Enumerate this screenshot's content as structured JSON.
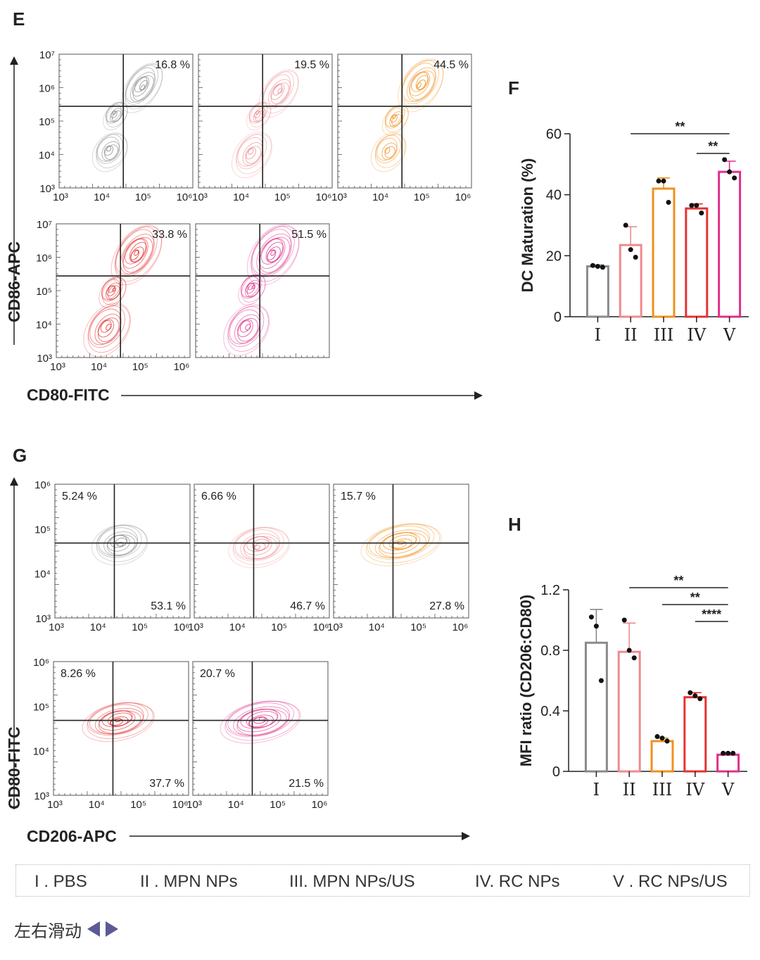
{
  "panels": {
    "E": {
      "letter": "E",
      "ylabel": "CD86-APC",
      "xlabel": "CD80-FITC",
      "y_ticks": [
        "10³",
        "10⁴",
        "10⁵",
        "10⁶",
        "10⁷"
      ],
      "x_ticks": [
        "10³",
        "10⁴",
        "10⁵",
        "10⁶"
      ],
      "plots": [
        {
          "group": "I",
          "color": "#8a8a8a",
          "q_upper_right": "16.8 %"
        },
        {
          "group": "II",
          "color": "#ef8a8e",
          "q_upper_right": "19.5 %"
        },
        {
          "group": "III",
          "color": "#f0901e",
          "q_upper_right": "44.5 %"
        },
        {
          "group": "IV",
          "color": "#e63232",
          "q_upper_right": "33.8 %"
        },
        {
          "group": "V",
          "color": "#e0308a",
          "q_upper_right": "51.5 %"
        }
      ]
    },
    "G": {
      "letter": "G",
      "ylabel": "CD80-FITC",
      "xlabel": "CD206-APC",
      "y_ticks": [
        "10³",
        "10⁴",
        "10⁵",
        "10⁶"
      ],
      "x_ticks": [
        "10³",
        "10⁴",
        "10⁵",
        "10⁶"
      ],
      "plots": [
        {
          "group": "I",
          "color": "#8a8a8a",
          "q_upper_left": "5.24 %",
          "q_lower_right": "53.1 %"
        },
        {
          "group": "II",
          "color": "#ef8a8e",
          "q_upper_left": "6.66 %",
          "q_lower_right": "46.7 %"
        },
        {
          "group": "III",
          "color": "#f0901e",
          "q_upper_left": "15.7 %",
          "q_lower_right": "27.8 %"
        },
        {
          "group": "IV",
          "color": "#e63232",
          "q_upper_left": "8.26 %",
          "q_lower_right": "37.7 %"
        },
        {
          "group": "V",
          "color": "#e0308a",
          "q_upper_left": "20.7 %",
          "q_lower_right": "21.5 %"
        }
      ]
    }
  },
  "chart_data": [
    {
      "panel": "F",
      "type": "bar",
      "letter": "F",
      "ylabel": "DC Maturation (%)",
      "xlabel": "",
      "categories": [
        "I",
        "II",
        "III",
        "IV",
        "V"
      ],
      "colors": [
        "#8a8a8a",
        "#ef8a8e",
        "#f0901e",
        "#e63232",
        "#e0308a"
      ],
      "values": [
        16.5,
        23.5,
        42,
        35.5,
        47.5
      ],
      "errors": [
        0.5,
        6,
        3.5,
        1.5,
        3.5
      ],
      "points": [
        [
          16.8,
          16.5,
          16.2
        ],
        [
          30,
          22,
          19.5
        ],
        [
          44.5,
          44.5,
          37.5
        ],
        [
          36.5,
          36.5,
          34
        ],
        [
          51.5,
          47.5,
          45.5
        ]
      ],
      "ylim": [
        0,
        60
      ],
      "y_ticks": [
        0,
        20,
        40,
        60
      ],
      "significance": [
        {
          "from": "II",
          "to": "V",
          "label": "**"
        },
        {
          "from": "IV",
          "to": "V",
          "label": "**"
        }
      ]
    },
    {
      "panel": "H",
      "type": "bar",
      "letter": "H",
      "ylabel": "MFI ratio (CD206:CD80)",
      "xlabel": "",
      "categories": [
        "I",
        "II",
        "III",
        "IV",
        "V"
      ],
      "colors": [
        "#8a8a8a",
        "#ef8a8e",
        "#f0901e",
        "#e63232",
        "#e0308a"
      ],
      "values": [
        0.85,
        0.79,
        0.2,
        0.49,
        0.11
      ],
      "errors": [
        0.22,
        0.19,
        0.02,
        0.03,
        0.01
      ],
      "points": [
        [
          1.02,
          0.96,
          0.6
        ],
        [
          1.0,
          0.8,
          0.75
        ],
        [
          0.23,
          0.22,
          0.2
        ],
        [
          0.52,
          0.5,
          0.48
        ],
        [
          0.12,
          0.12,
          0.12
        ]
      ],
      "ylim": [
        0,
        1.2
      ],
      "y_ticks": [
        "0",
        "0.4",
        "0.8",
        "1.2"
      ],
      "y_tick_values": [
        0,
        0.4,
        0.8,
        1.2
      ],
      "significance": [
        {
          "from": "II",
          "to": "V",
          "label": "**"
        },
        {
          "from": "III",
          "to": "V",
          "label": "**"
        },
        {
          "from": "IV",
          "to": "V",
          "label": "****"
        }
      ]
    }
  ],
  "legend": [
    {
      "label": "I . PBS"
    },
    {
      "label": "II . MPN NPs"
    },
    {
      "label": "III. MPN NPs/US"
    },
    {
      "label": "IV. RC NPs"
    },
    {
      "label": "V . RC NPs/US"
    }
  ],
  "swipe_hint": "左右滑动"
}
